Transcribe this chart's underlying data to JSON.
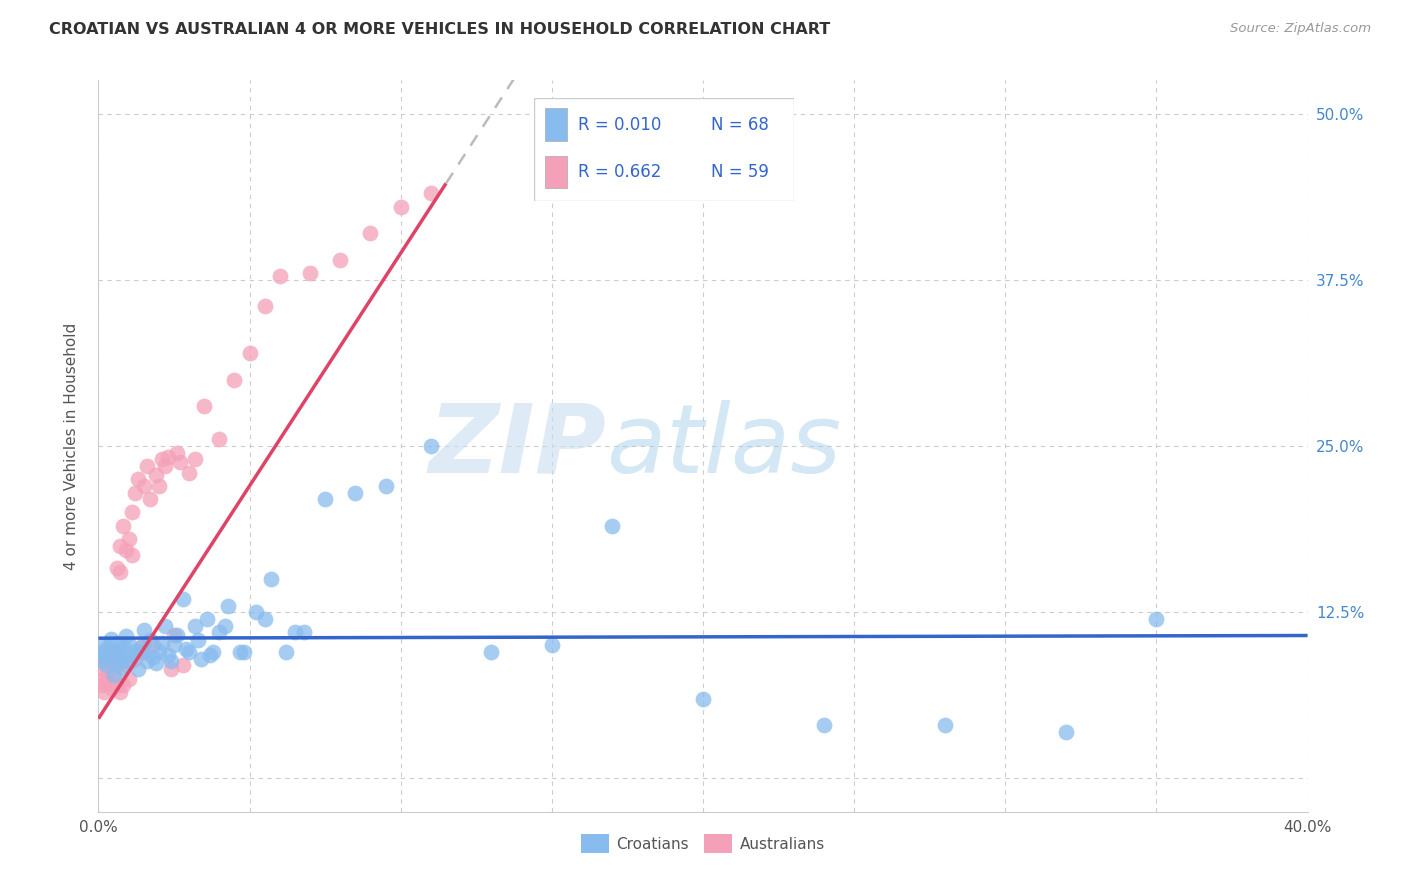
{
  "title": "CROATIAN VS AUSTRALIAN 4 OR MORE VEHICLES IN HOUSEHOLD CORRELATION CHART",
  "source": "Source: ZipAtlas.com",
  "ylabel": "4 or more Vehicles in Household",
  "xlim": [
    0.0,
    0.4
  ],
  "ylim": [
    -0.025,
    0.525
  ],
  "xticks": [
    0.0,
    0.05,
    0.1,
    0.15,
    0.2,
    0.25,
    0.3,
    0.35,
    0.4
  ],
  "yticks": [
    0.0,
    0.125,
    0.25,
    0.375,
    0.5
  ],
  "watermark_zip": "ZIP",
  "watermark_atlas": "atlas",
  "legend_r1": "R = 0.010",
  "legend_n1": "N = 68",
  "legend_r2": "R = 0.662",
  "legend_n2": "N = 59",
  "blue_scatter_color": "#88bbee",
  "pink_scatter_color": "#f4a0b8",
  "blue_line_color": "#3366cc",
  "pink_line_color": "#dd4466",
  "pink_dashed_color": "#bbbbbb",
  "grid_color": "#cccccc",
  "background_color": "#ffffff",
  "title_color": "#333333",
  "source_color": "#999999",
  "ylabel_color": "#555555",
  "right_ytick_color": "#4488cc",
  "legend_text_color": "#3366cc"
}
